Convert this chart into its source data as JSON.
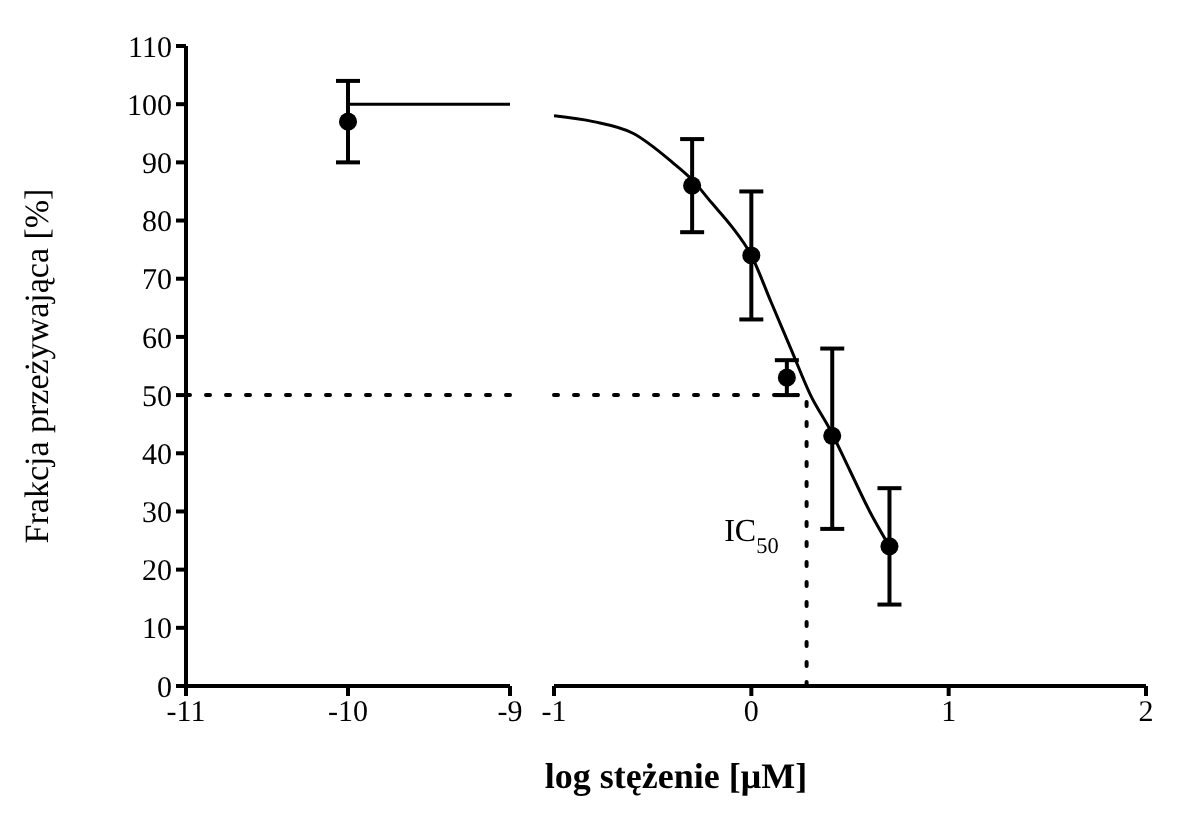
{
  "chart_data": [
    {
      "type": "scatter",
      "ylabel": "Frakcja przeżywająca [%]",
      "xlim": [
        -11,
        -9
      ],
      "xticks": [
        -11,
        -10,
        -9
      ],
      "ylim": [
        0,
        110
      ],
      "yticks": [
        0,
        10,
        20,
        30,
        40,
        50,
        60,
        70,
        80,
        90,
        100,
        110
      ],
      "series": [
        {
          "color": "#000000",
          "marker": "circle",
          "x": [
            -10
          ],
          "values": [
            97
          ],
          "errors": [
            [
              90,
              104
            ]
          ]
        },
        {
          "type": "line",
          "color": "#000000",
          "marker": "none",
          "x": [
            -10,
            -9
          ],
          "values": [
            100,
            100
          ]
        }
      ],
      "ref_lines": [
        {
          "axis": "y",
          "value": 50,
          "line_style": "dotted",
          "color": "#000000"
        }
      ]
    },
    {
      "type": "scatter",
      "xlabel": "log stężenie [μM]",
      "xlim": [
        -1,
        2
      ],
      "xticks": [
        -1,
        0,
        1,
        2
      ],
      "ylim": [
        0,
        110
      ],
      "yticks": [
        0,
        10,
        20,
        30,
        40,
        50,
        60,
        70,
        80,
        90,
        100,
        110
      ],
      "tick_labels": "x",
      "series": [
        {
          "color": "#000000",
          "marker": "circle",
          "x": [
            -0.3,
            0,
            0.18,
            0.41,
            0.7
          ],
          "values": [
            86,
            74,
            53,
            43,
            24
          ],
          "errors": [
            [
              78,
              94
            ],
            [
              63,
              85
            ],
            [
              50,
              56
            ],
            [
              27,
              58
            ],
            [
              14,
              34
            ]
          ]
        },
        {
          "type": "line",
          "color": "#000000",
          "marker": "none",
          "x": [
            -1,
            -0.8,
            -0.6,
            -0.4,
            -0.3,
            -0.2,
            -0.1,
            0,
            0.1,
            0.2,
            0.3,
            0.4,
            0.5,
            0.6,
            0.7
          ],
          "values": [
            98,
            97,
            95,
            90,
            87,
            83,
            79,
            74,
            66,
            58,
            50,
            44,
            37,
            30,
            24
          ]
        }
      ],
      "ref_lines": [
        {
          "axis": "y",
          "value": 50,
          "line_style": "dotted",
          "color": "#000000"
        },
        {
          "axis": "x",
          "value": 0.28,
          "label": "IC$_{50}$",
          "line_style": "dotted",
          "color": "#000000"
        }
      ]
    }
  ]
}
